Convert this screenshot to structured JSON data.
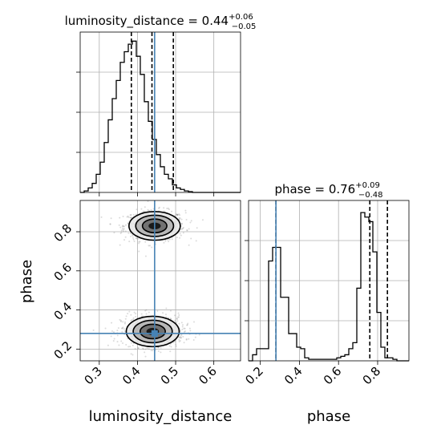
{
  "chart_data": {
    "type": "corner",
    "parameters": [
      "luminosity_distance",
      "phase"
    ],
    "titles": {
      "luminosity_distance": {
        "prefix": "luminosity_distance = ",
        "median": "0.44",
        "plus": "+0.06",
        "minus": "−0.05"
      },
      "phase": {
        "prefix": "phase = ",
        "median": "0.76",
        "plus": "+0.09",
        "minus": "−0.48"
      }
    },
    "xlabels": [
      "luminosity_distance",
      "phase"
    ],
    "ylabel": "phase",
    "ranges": {
      "luminosity_distance": [
        0.25,
        0.67
      ],
      "phase": [
        0.14,
        0.96
      ]
    },
    "ticks": {
      "luminosity_distance": [
        "0.3",
        "0.4",
        "0.5",
        "0.6"
      ],
      "phase": [
        "0.2",
        "0.4",
        "0.6",
        "0.8"
      ]
    },
    "truths": {
      "luminosity_distance": 0.445,
      "phase": 0.28
    },
    "quantiles": {
      "luminosity_distance": [
        0.384,
        0.438,
        0.494
      ],
      "phase": [
        0.28,
        0.76,
        0.85
      ]
    },
    "histograms": {
      "luminosity_distance": {
        "bin_start": 0.25,
        "bin_width": 0.0105,
        "counts": [
          0,
          0.01,
          0.03,
          0.06,
          0.12,
          0.2,
          0.33,
          0.48,
          0.62,
          0.74,
          0.86,
          0.93,
          0.98,
          1.0,
          0.9,
          0.78,
          0.6,
          0.47,
          0.35,
          0.25,
          0.17,
          0.12,
          0.09,
          0.05,
          0.03,
          0.02,
          0.01,
          0.005,
          0,
          0,
          0,
          0,
          0,
          0,
          0,
          0,
          0,
          0,
          0,
          0
        ]
      },
      "phase": {
        "bin_start": 0.14,
        "bin_width": 0.0205,
        "counts": [
          0,
          0.04,
          0.08,
          0.08,
          0.08,
          0.66,
          0.75,
          0.75,
          0.42,
          0.42,
          0.18,
          0.18,
          0.09,
          0.08,
          0.02,
          0.01,
          0.01,
          0.01,
          0.01,
          0.01,
          0.01,
          0.01,
          0.02,
          0.03,
          0.04,
          0.08,
          0.12,
          0.48,
          0.98,
          0.95,
          0.92,
          0.72,
          0.32,
          0.09,
          0.02,
          0.02,
          0.01,
          0,
          0,
          0
        ]
      }
    },
    "modes_2d": [
      {
        "x": 0.445,
        "y": 0.83,
        "sx": 0.032,
        "sy": 0.035
      },
      {
        "x": 0.44,
        "y": 0.29,
        "sx": 0.033,
        "sy": 0.037
      }
    ],
    "grid": true,
    "colors": {
      "line": "#000000",
      "truth": "#4682b4",
      "grid": "#b0b0b0",
      "samples": "#7f7f7f"
    }
  }
}
